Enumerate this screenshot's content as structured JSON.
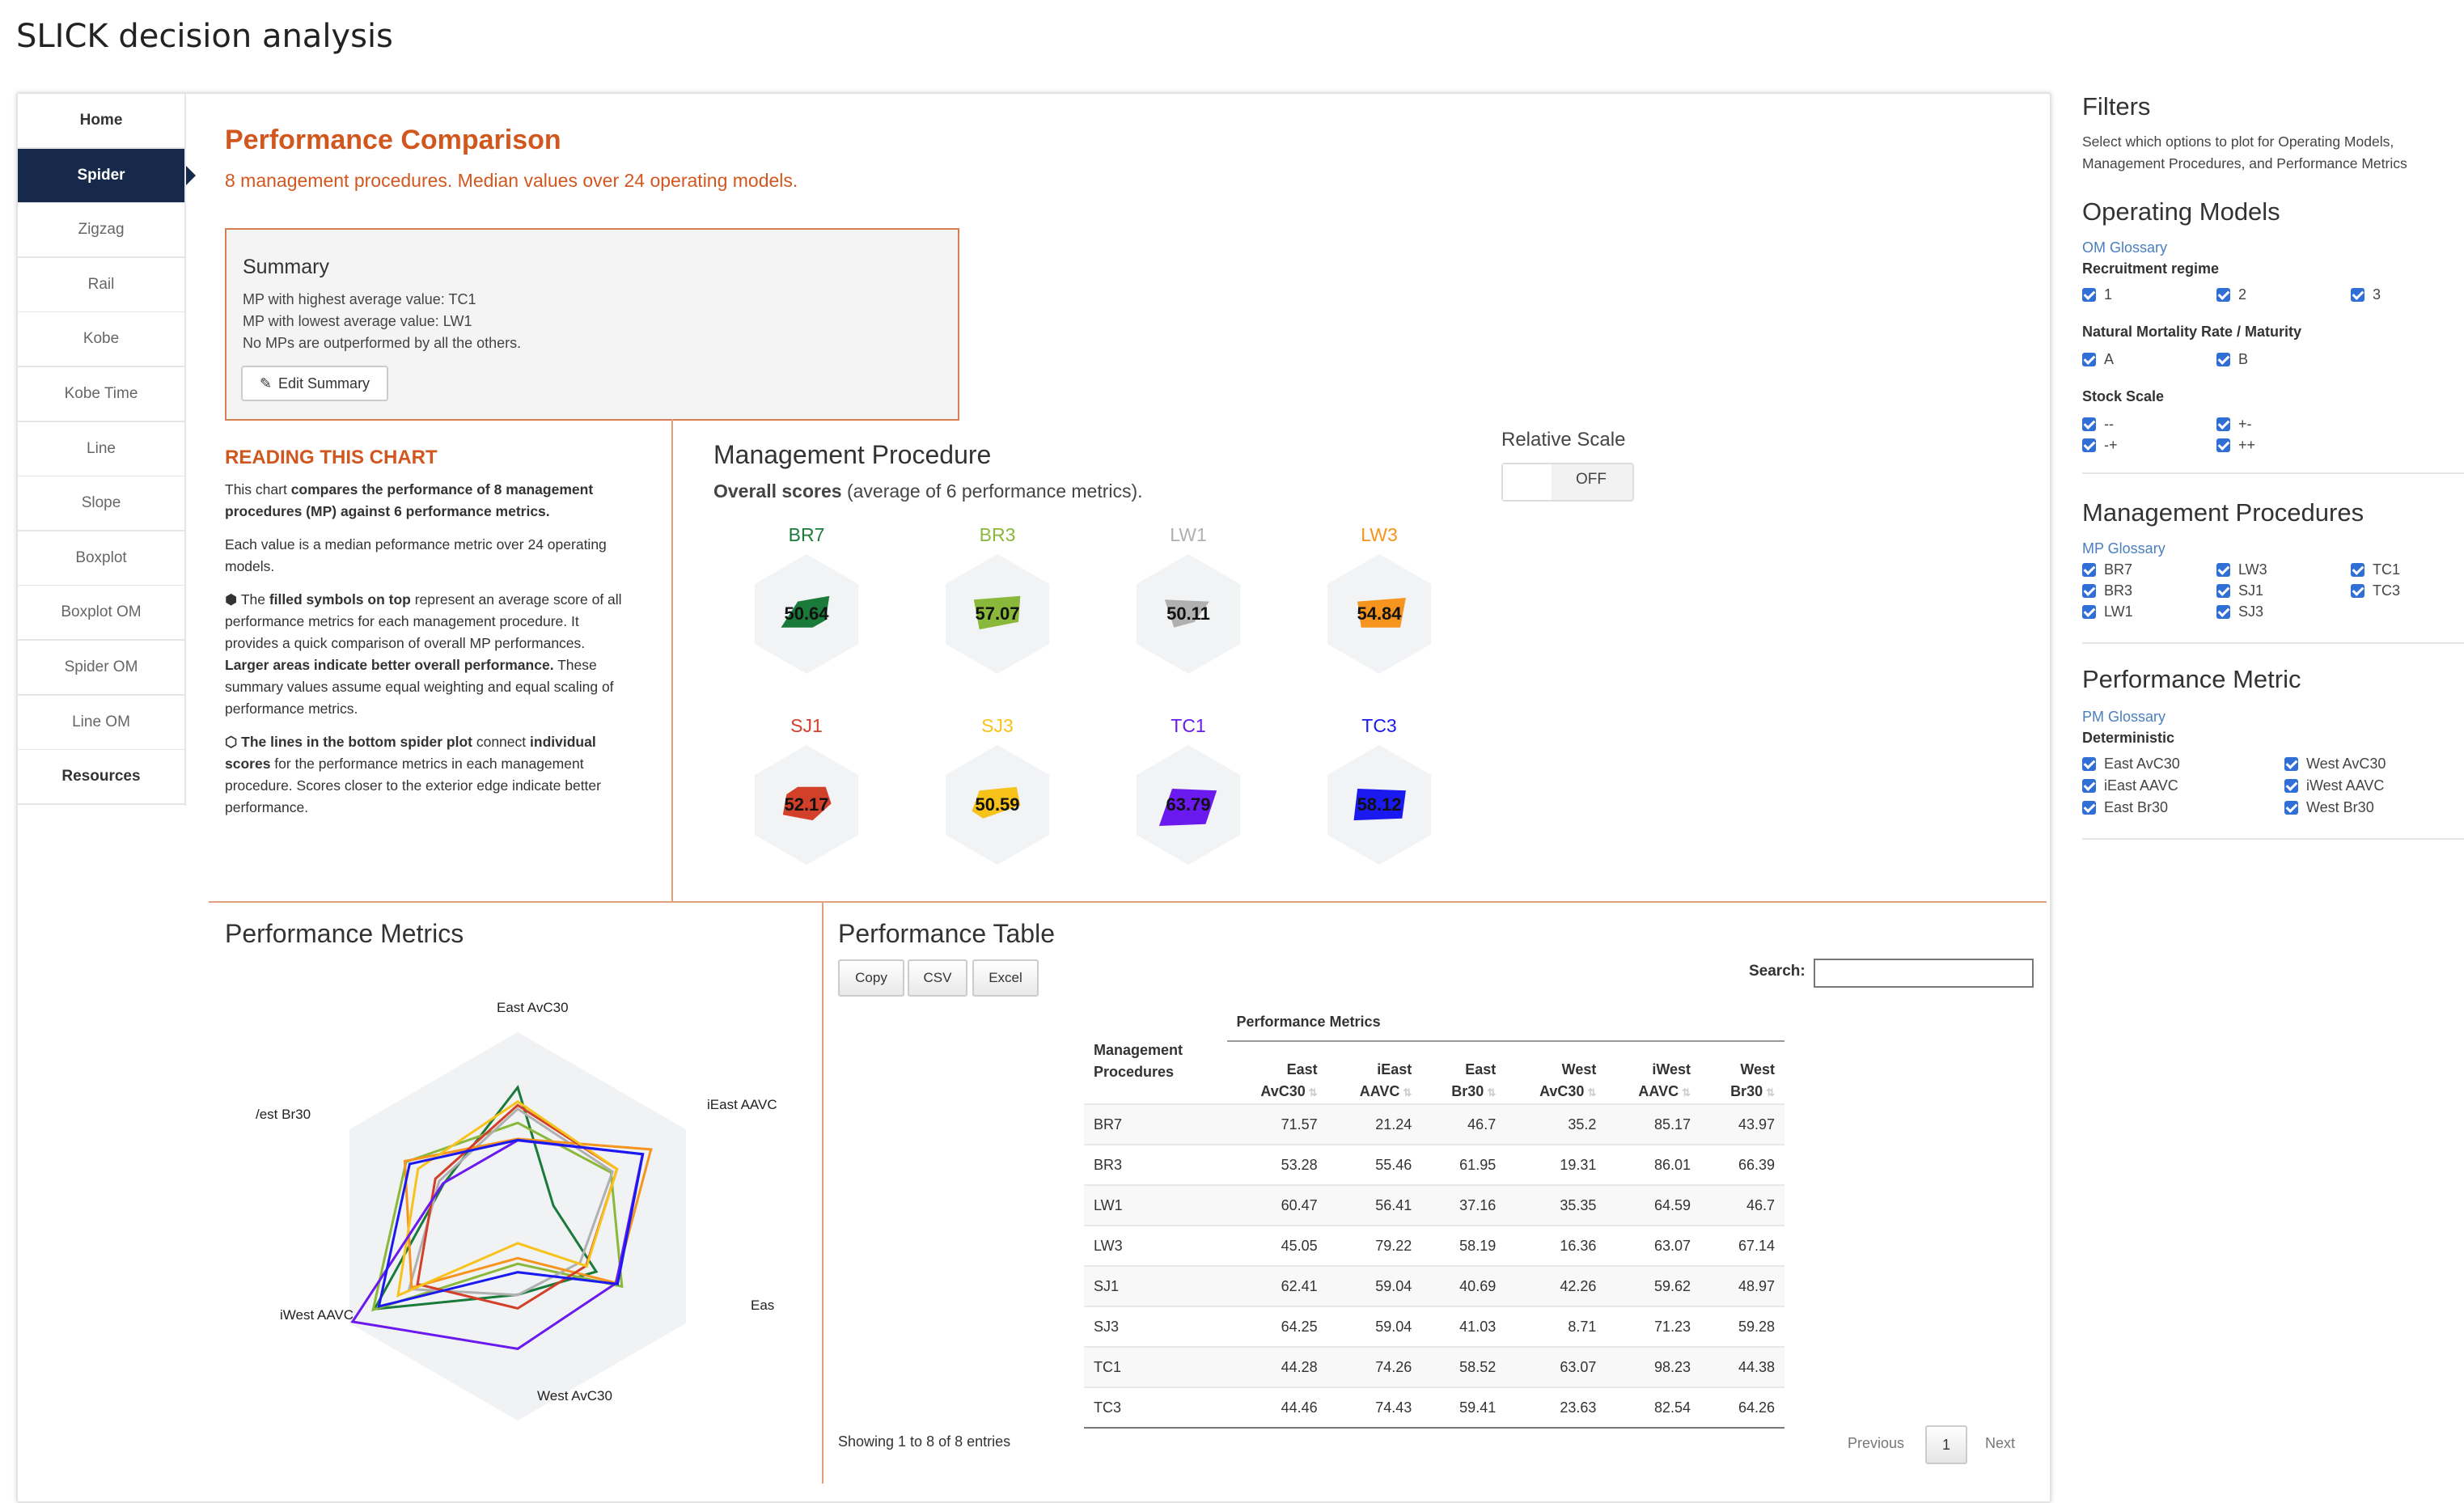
{
  "app_title": "SLICK decision analysis",
  "nav": [
    {
      "label": "Home",
      "state": "bold"
    },
    {
      "label": "Spider",
      "state": "active"
    },
    {
      "label": "Zigzag"
    },
    {
      "label": "Rail"
    },
    {
      "label": "Kobe"
    },
    {
      "label": "Kobe Time"
    },
    {
      "label": "Line"
    },
    {
      "label": "Slope"
    },
    {
      "label": "Boxplot"
    },
    {
      "label": "Boxplot OM"
    },
    {
      "label": "Spider OM"
    },
    {
      "label": "Line OM"
    },
    {
      "label": "Resources",
      "state": "bold"
    }
  ],
  "main": {
    "title": "Performance Comparison",
    "subtitle": "8 management procedures. Median values over 24 operating models."
  },
  "summary": {
    "heading": "Summary",
    "lines": [
      "MP with highest average value: TC1",
      "MP with lowest average value: LW1",
      "No MPs are outperformed by all the others."
    ],
    "edit_label": "Edit Summary"
  },
  "reading": {
    "title": "READING THIS CHART",
    "p1_a": "This chart ",
    "p1_b": "compares the performance of 8 management procedures (MP) against 6 performance metrics.",
    "p2": "Each value is a median peformance metric over 24 operating models.",
    "p3_a": "⬢ The ",
    "p3_b": "filled symbols on top",
    "p3_c": " represent an average score of all performance metrics for each management procedure. It provides a quick comparison of overall MP performances. ",
    "p3_d": "Larger areas indicate better overall performance.",
    "p3_e": " These summary values assume equal weighting and equal scaling of performance metrics.",
    "p4_a": "⬡ The lines in the bottom spider plot",
    "p4_b": " connect ",
    "p4_c": "individual scores",
    "p4_d": " for the performance metrics in each management procedure. Scores closer to the exterior edge indicate better performance."
  },
  "mp_section": {
    "title": "Management Procedure",
    "overall_bold": "Overall scores",
    "overall_rest": " (average of 6 performance metrics).",
    "relative_scale_label": "Relative Scale",
    "toggle_text": "OFF",
    "cards": [
      {
        "name": "BR7",
        "value": "50.64",
        "color": "#1a7a3a"
      },
      {
        "name": "BR3",
        "value": "57.07",
        "color": "#8ab83a"
      },
      {
        "name": "LW1",
        "value": "50.11",
        "color": "#b0b0b0"
      },
      {
        "name": "LW3",
        "value": "54.84",
        "color": "#f5941e"
      },
      {
        "name": "SJ1",
        "value": "52.17",
        "color": "#d2402a"
      },
      {
        "name": "SJ3",
        "value": "50.59",
        "color": "#f7c21a"
      },
      {
        "name": "TC1",
        "value": "63.79",
        "color": "#6a1aee"
      },
      {
        "name": "TC3",
        "value": "58.12",
        "color": "#1a1af0"
      }
    ]
  },
  "metrics_section": {
    "title": "Performance Metrics",
    "axes": [
      "East AvC30",
      "iEast AAVC",
      "Eas",
      "West AvC30",
      "iWest AAVC",
      "/est Br30"
    ]
  },
  "table_section": {
    "title": "Performance Table",
    "buttons": [
      "Copy",
      "CSV",
      "Excel"
    ],
    "search_label": "Search:",
    "group_header": "Performance Metrics",
    "col_mp": [
      "Management",
      "Procedures"
    ],
    "columns": [
      [
        "East",
        "AvC30"
      ],
      [
        "iEast",
        "AAVC"
      ],
      [
        "East",
        "Br30"
      ],
      [
        "West",
        "AvC30"
      ],
      [
        "iWest",
        "AAVC"
      ],
      [
        "West",
        "Br30"
      ]
    ],
    "rows": [
      {
        "mp": "BR7",
        "v": [
          "71.57",
          "21.24",
          "46.7",
          "35.2",
          "85.17",
          "43.97"
        ]
      },
      {
        "mp": "BR3",
        "v": [
          "53.28",
          "55.46",
          "61.95",
          "19.31",
          "86.01",
          "66.39"
        ]
      },
      {
        "mp": "LW1",
        "v": [
          "60.47",
          "56.41",
          "37.16",
          "35.35",
          "64.59",
          "46.7"
        ]
      },
      {
        "mp": "LW3",
        "v": [
          "45.05",
          "79.22",
          "58.19",
          "16.36",
          "63.07",
          "67.14"
        ]
      },
      {
        "mp": "SJ1",
        "v": [
          "62.41",
          "59.04",
          "40.69",
          "42.26",
          "59.62",
          "48.97"
        ]
      },
      {
        "mp": "SJ3",
        "v": [
          "64.25",
          "59.04",
          "41.03",
          "8.71",
          "71.23",
          "59.28"
        ]
      },
      {
        "mp": "TC1",
        "v": [
          "44.28",
          "74.26",
          "58.52",
          "63.07",
          "98.23",
          "44.38"
        ]
      },
      {
        "mp": "TC3",
        "v": [
          "44.46",
          "74.43",
          "59.41",
          "23.63",
          "82.54",
          "64.26"
        ]
      }
    ],
    "showing": "Showing 1 to 8 of 8 entries",
    "pagination": {
      "previous": "Previous",
      "page": "1",
      "next": "Next"
    }
  },
  "filters": {
    "title": "Filters",
    "desc": "Select which options to plot for Operating Models, Management Procedures, and Performance Metrics",
    "om": {
      "title": "Operating Models",
      "glossary": "OM Glossary",
      "groups": [
        {
          "label": "Recruitment regime",
          "options": [
            "1",
            "2",
            "3"
          ]
        },
        {
          "label": "Natural Mortality Rate / Maturity",
          "options": [
            "A",
            "B"
          ]
        },
        {
          "label": "Stock Scale",
          "options": [
            "--",
            "+-",
            "-+",
            "++"
          ]
        }
      ]
    },
    "mp": {
      "title": "Management Procedures",
      "glossary": "MP Glossary",
      "options": [
        "BR7",
        "LW3",
        "TC1",
        "BR3",
        "SJ1",
        "TC3",
        "LW1",
        "SJ3"
      ]
    },
    "pm": {
      "title": "Performance Metric",
      "glossary": "PM Glossary",
      "group": "Deterministic",
      "options": [
        "East AvC30",
        "West AvC30",
        "iEast AAVC",
        "iWest AAVC",
        "East Br30",
        "West Br30"
      ]
    }
  },
  "colors": {
    "accent": "#d2571f",
    "nav_active": "#16294b",
    "link": "#4a7fbf",
    "checkbox": "#2f6fd6"
  }
}
